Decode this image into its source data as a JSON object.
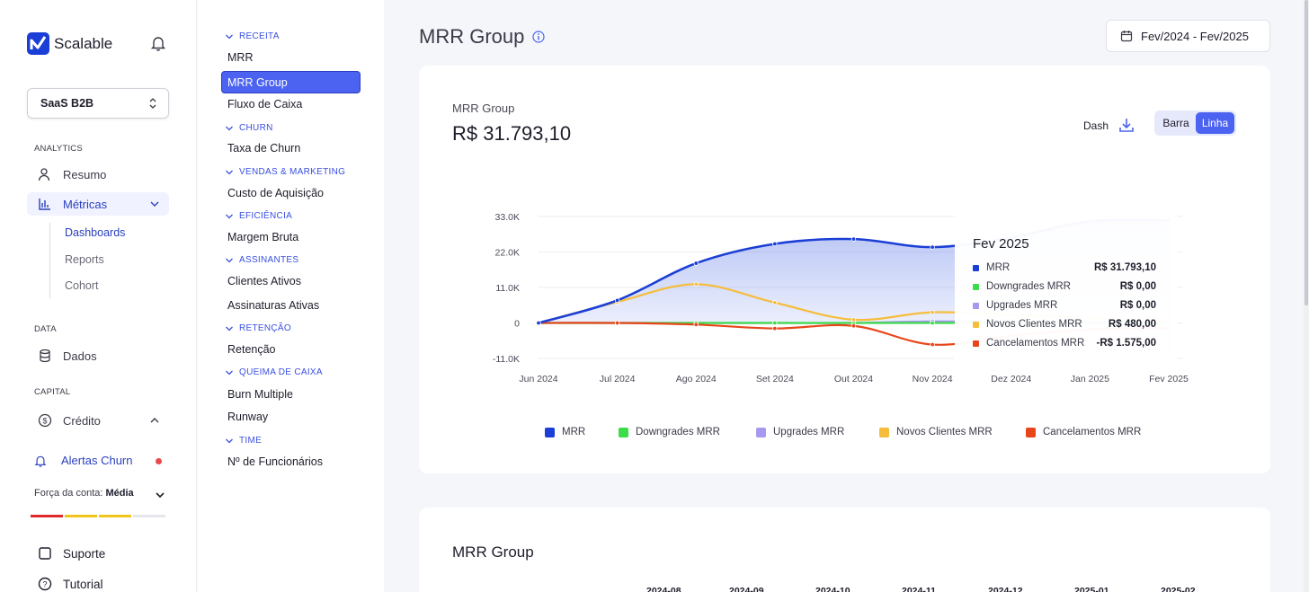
{
  "app": {
    "brand": "Scalable",
    "workspace": "SaaS B2B"
  },
  "sidebar": {
    "analytics_header": "ANALYTICS",
    "resumo": "Resumo",
    "metricas": "Métricas",
    "sub": [
      "Dashboards",
      "Reports",
      "Cohort"
    ],
    "data_header": "DATA",
    "dados": "Dados",
    "capital_header": "CAPITAL",
    "credito": "Crédito",
    "alertas": "Alertas Churn",
    "forca_label": "Força da conta:",
    "forca_value": "Média",
    "suporte": "Suporte",
    "tutorial": "Tutorial"
  },
  "menu": {
    "groups": [
      "RECEITA",
      "CHURN",
      "VENDAS & MARKETING",
      "EFICIÊNCIA",
      "ASSINANTES",
      "RETENÇÃO",
      "QUEIMA DE CAIXA",
      "TIME"
    ],
    "items": [
      "MRR",
      "MRR Group",
      "Fluxo de Caixa",
      "Taxa de Churn",
      "Custo de Aquisição",
      "Margem Bruta",
      "Clientes Ativos",
      "Assinaturas Ativas",
      "Retenção",
      "Burn Multiple",
      "Runway",
      "Nº de Funcionários"
    ]
  },
  "main": {
    "title": "MRR Group",
    "date_range": "Fev/2024 - Fev/2025",
    "card_subtitle": "MRR Group",
    "card_value": "R$ 31.793,10",
    "dash_label": "Dash",
    "toggle": [
      "Barra",
      "Linha"
    ],
    "table_title": "MRR Group",
    "table_cols": [
      "2024-08",
      "2024-09",
      "2024-10",
      "2024-11",
      "2024-12",
      "2025-01",
      "2025-02"
    ]
  },
  "tooltip": {
    "title": "Fev 2025",
    "rows": [
      {
        "label": "MRR",
        "value": "R$ 31.793,10"
      },
      {
        "label": "Downgrades MRR",
        "value": "R$ 0,00"
      },
      {
        "label": "Upgrades MRR",
        "value": "R$ 0,00"
      },
      {
        "label": "Novos Clientes MRR",
        "value": "R$ 480,00"
      },
      {
        "label": "Cancelamentos MRR",
        "value": "-R$ 1.575,00"
      }
    ]
  },
  "colors": {
    "accent": "#4b63f0",
    "mrr": "#1b3fd6",
    "downgrades": "#3ddc4a",
    "upgrades": "#a998f0",
    "novos": "#f6bd3c",
    "cancel": "#e8461a"
  },
  "chart_data": {
    "type": "line",
    "categories": [
      "Jun 2024",
      "Jul 2024",
      "Ago 2024",
      "Set 2024",
      "Out 2024",
      "Nov 2024",
      "Dez 2024",
      "Jan 2025",
      "Fev 2025"
    ],
    "yticks": [
      "33.0K",
      "22.0K",
      "11.0K",
      "0",
      "-11.0K"
    ],
    "ylim": [
      -11000,
      33000
    ],
    "series": [
      {
        "name": "MRR",
        "values": [
          0,
          7000,
          18500,
          24500,
          26000,
          23500,
          26500,
          31500,
          31793.1
        ]
      },
      {
        "name": "Downgrades MRR",
        "values": [
          0,
          0,
          0,
          0,
          0,
          0,
          0,
          0,
          0
        ]
      },
      {
        "name": "Upgrades MRR",
        "values": [
          0,
          0,
          0,
          0,
          0,
          500,
          300,
          200,
          0
        ]
      },
      {
        "name": "Novos Clientes MRR",
        "values": [
          0,
          6500,
          12000,
          6300,
          1000,
          3300,
          2500,
          1500,
          480
        ]
      },
      {
        "name": "Cancelamentos MRR",
        "values": [
          0,
          0,
          -500,
          -1700,
          -900,
          -6700,
          -4000,
          -2000,
          -1575
        ]
      }
    ]
  }
}
